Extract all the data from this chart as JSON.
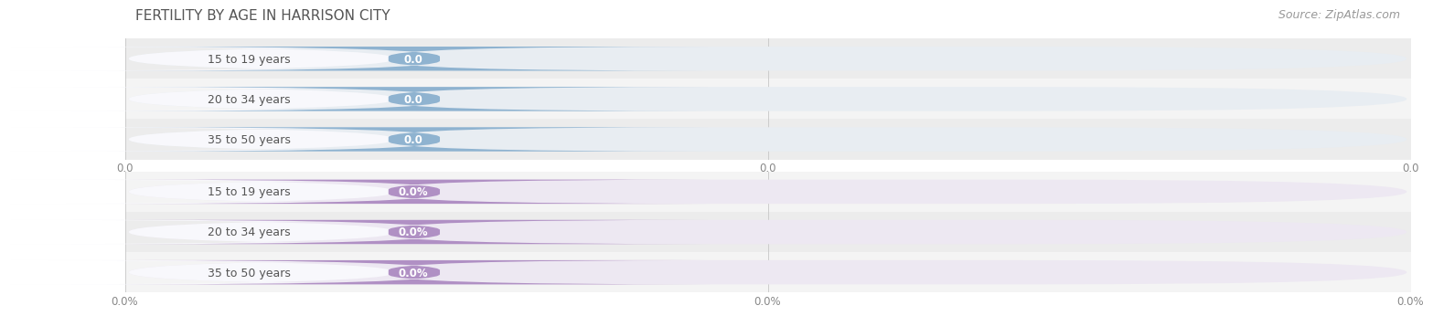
{
  "title": "FERTILITY BY AGE IN HARRISON CITY",
  "source": "Source: ZipAtlas.com",
  "top_section": {
    "categories": [
      "15 to 19 years",
      "20 to 34 years",
      "35 to 50 years"
    ],
    "values": [
      0.0,
      0.0,
      0.0
    ],
    "bar_bg_color": "#e8edf2",
    "label_pill_bg": "#dce5ef",
    "badge_color": "#8fb3d0",
    "badge_text_color": "#ffffff",
    "cat_text_color": "#555555",
    "row_bg_colors": [
      "#ececec",
      "#f4f4f4",
      "#ececec"
    ],
    "x_tick_labels": [
      "0.0",
      "0.0",
      "0.0"
    ],
    "x_tick_positions": [
      0.0,
      0.5,
      1.0
    ]
  },
  "bottom_section": {
    "categories": [
      "15 to 19 years",
      "20 to 34 years",
      "35 to 50 years"
    ],
    "values": [
      0.0,
      0.0,
      0.0
    ],
    "bar_bg_color": "#ede8f2",
    "label_pill_bg": "#e4dbed",
    "badge_color": "#b090c4",
    "badge_text_color": "#ffffff",
    "cat_text_color": "#555555",
    "row_bg_colors": [
      "#f4f4f4",
      "#ececec",
      "#f4f4f4"
    ],
    "x_tick_labels": [
      "0.0%",
      "0.0%",
      "0.0%"
    ],
    "x_tick_positions": [
      0.0,
      0.5,
      1.0
    ]
  },
  "bg_color": "#ffffff",
  "title_fontsize": 11,
  "source_fontsize": 9,
  "category_fontsize": 9,
  "value_fontsize": 8.5
}
